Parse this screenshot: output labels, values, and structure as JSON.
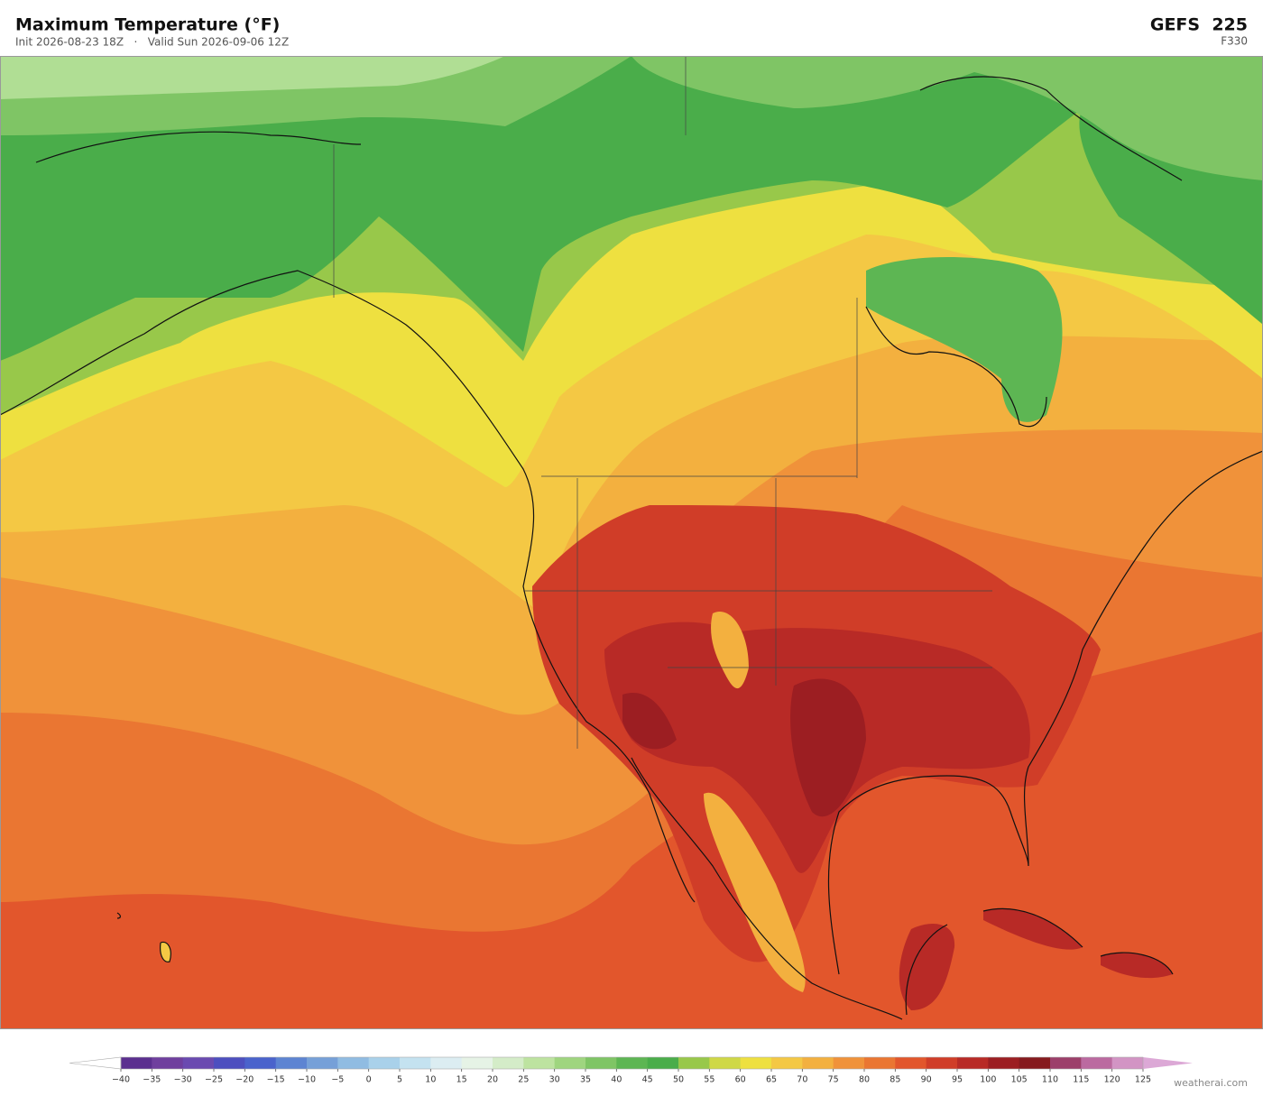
{
  "header": {
    "title": "Maximum Temperature  (°F)",
    "subtitle": "Init 2026-08-23 18Z   ·   Valid Sun 2026-09-06 12Z",
    "model": "GEFS  225",
    "forecast_hour": "F330"
  },
  "colorbar": {
    "ticks": [
      {
        "value": -40,
        "label": "−40"
      },
      {
        "value": -35,
        "label": "−35"
      },
      {
        "value": -30,
        "label": "−30"
      },
      {
        "value": -25,
        "label": "−25"
      },
      {
        "value": -20,
        "label": "−20"
      },
      {
        "value": -15,
        "label": "−15"
      },
      {
        "value": -10,
        "label": "−10"
      },
      {
        "value": -5,
        "label": "−5"
      },
      0,
      5,
      10,
      15,
      20,
      25,
      30,
      35,
      40,
      45,
      50,
      55,
      60,
      65,
      70,
      75,
      80,
      85,
      90,
      95,
      100,
      105,
      110,
      115,
      120,
      125
    ],
    "colors": [
      "#5b2f8f",
      "#6f3f9e",
      "#6a4ab0",
      "#4d4fbf",
      "#4a63cc",
      "#5d84d2",
      "#76a0d8",
      "#90bce2",
      "#a9d1ea",
      "#c4e2f0",
      "#dcedf2",
      "#e6f3e6",
      "#d4ecc8",
      "#bde3a0",
      "#9fd57f",
      "#7fc565",
      "#5db653",
      "#4aad4a",
      "#98c84a",
      "#cfd846",
      "#eee040",
      "#f4c844",
      "#f3b03f",
      "#f0923a",
      "#ea7632",
      "#e2562c",
      "#d03d28",
      "#b82a26",
      "#9c1e22",
      "#861a1e",
      "#9c3f6a",
      "#bb6aa0",
      "#d294c4"
    ],
    "under_color": "#ffffff",
    "over_color": "#dca8d6"
  },
  "footer": {
    "credit": "weatherai.com"
  }
}
